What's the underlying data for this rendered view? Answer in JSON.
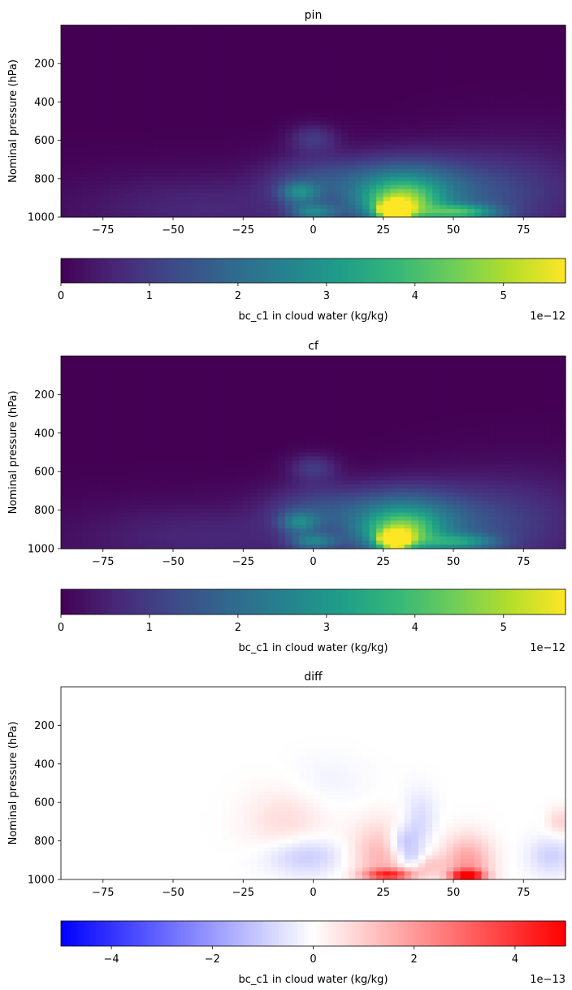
{
  "chart_data": [
    {
      "type": "heatmap",
      "title": "pin",
      "xlabel": "",
      "ylabel": "Nominal pressure (hPa)",
      "xlim": [
        -90,
        90
      ],
      "ylim": [
        1000,
        0
      ],
      "xticks": [
        -75,
        -50,
        -25,
        0,
        25,
        50,
        75
      ],
      "yticks": [
        200,
        400,
        600,
        800,
        1000
      ],
      "colormap": "viridis",
      "colorbar": {
        "label": "bc_c1 in cloud water (kg/kg)",
        "range": [
          0,
          5.7e-12
        ],
        "ticks": [
          0,
          1,
          2,
          3,
          4,
          5
        ],
        "multiplier": "1e−12"
      },
      "features": [
        {
          "lat": 29,
          "pressure": 965,
          "dlat": 3.5,
          "dp": 28,
          "value": 5.5e-12
        },
        {
          "lat": 31,
          "pressure": 940,
          "dlat": 9,
          "dp": 70,
          "value": 2.5e-12
        },
        {
          "lat": 30,
          "pressure": 860,
          "dlat": 14,
          "dp": 110,
          "value": 2.2e-12
        },
        {
          "lat": 53,
          "pressure": 975,
          "dlat": 9,
          "dp": 28,
          "value": 2.4e-12
        },
        {
          "lat": 50,
          "pressure": 900,
          "dlat": 22,
          "dp": 140,
          "value": 1.1e-12
        },
        {
          "lat": 0,
          "pressure": 975,
          "dlat": 6,
          "dp": 30,
          "value": 2e-12
        },
        {
          "lat": -5,
          "pressure": 875,
          "dlat": 5,
          "dp": 40,
          "value": 1.8e-12
        },
        {
          "lat": 0,
          "pressure": 800,
          "dlat": 12,
          "dp": 90,
          "value": 1e-12
        },
        {
          "lat": 0,
          "pressure": 590,
          "dlat": 6,
          "dp": 50,
          "value": 9e-13
        },
        {
          "lat": -40,
          "pressure": 930,
          "dlat": 30,
          "dp": 110,
          "value": 4.5e-13
        },
        {
          "lat": 75,
          "pressure": 800,
          "dlat": 25,
          "dp": 180,
          "value": 4.5e-13
        }
      ]
    },
    {
      "type": "heatmap",
      "title": "cf",
      "xlabel": "",
      "ylabel": "Nominal pressure (hPa)",
      "xlim": [
        -90,
        90
      ],
      "ylim": [
        1000,
        0
      ],
      "xticks": [
        -75,
        -50,
        -25,
        0,
        25,
        50,
        75
      ],
      "yticks": [
        200,
        400,
        600,
        800,
        1000
      ],
      "colormap": "viridis",
      "colorbar": {
        "label": "bc_c1 in cloud water (kg/kg)",
        "range": [
          0,
          5.7e-12
        ],
        "ticks": [
          0,
          1,
          2,
          3,
          4,
          5
        ],
        "multiplier": "1e−12"
      },
      "features": [
        {
          "lat": 29,
          "pressure": 955,
          "dlat": 3.5,
          "dp": 28,
          "value": 5.2e-12
        },
        {
          "lat": 31,
          "pressure": 930,
          "dlat": 9,
          "dp": 70,
          "value": 2.4e-12
        },
        {
          "lat": 30,
          "pressure": 850,
          "dlat": 14,
          "dp": 110,
          "value": 2.1e-12
        },
        {
          "lat": 53,
          "pressure": 965,
          "dlat": 9,
          "dp": 28,
          "value": 1.8e-12
        },
        {
          "lat": 50,
          "pressure": 890,
          "dlat": 22,
          "dp": 140,
          "value": 1e-12
        },
        {
          "lat": 0,
          "pressure": 965,
          "dlat": 6,
          "dp": 30,
          "value": 1.9e-12
        },
        {
          "lat": -5,
          "pressure": 865,
          "dlat": 5,
          "dp": 40,
          "value": 1.7e-12
        },
        {
          "lat": 0,
          "pressure": 790,
          "dlat": 12,
          "dp": 90,
          "value": 1e-12
        },
        {
          "lat": 0,
          "pressure": 580,
          "dlat": 6,
          "dp": 50,
          "value": 9e-13
        },
        {
          "lat": -40,
          "pressure": 920,
          "dlat": 30,
          "dp": 110,
          "value": 4.5e-13
        },
        {
          "lat": 75,
          "pressure": 790,
          "dlat": 25,
          "dp": 180,
          "value": 4.5e-13
        }
      ]
    },
    {
      "type": "heatmap",
      "title": "diff",
      "xlabel": "",
      "ylabel": "Nominal pressure (hPa)",
      "xlim": [
        -90,
        90
      ],
      "ylim": [
        1000,
        0
      ],
      "xticks": [
        -75,
        -50,
        -25,
        0,
        25,
        50,
        75
      ],
      "yticks": [
        200,
        400,
        600,
        800,
        1000
      ],
      "colormap": "bwr",
      "colorbar": {
        "label": "bc_c1 in cloud water (kg/kg)",
        "range": [
          -5e-13,
          5e-13
        ],
        "ticks": [
          -4,
          -2,
          0,
          2,
          4
        ],
        "multiplier": "1e−13"
      },
      "features": [
        {
          "lat": 55,
          "pressure": 980,
          "dlat": 4,
          "dp": 20,
          "value": 4.8e-13
        },
        {
          "lat": 55,
          "pressure": 920,
          "dlat": 6,
          "dp": 100,
          "value": 2e-13
        },
        {
          "lat": 27,
          "pressure": 975,
          "dlat": 6,
          "dp": 20,
          "value": 3.5e-13
        },
        {
          "lat": 25,
          "pressure": 880,
          "dlat": 8,
          "dp": 120,
          "value": 1.6e-13
        },
        {
          "lat": 40,
          "pressure": 920,
          "dlat": 4,
          "dp": 40,
          "value": 1.4e-13
        },
        {
          "lat": -10,
          "pressure": 700,
          "dlat": 10,
          "dp": 120,
          "value": 7e-14
        },
        {
          "lat": 32,
          "pressure": 810,
          "dlat": 4,
          "dp": 60,
          "value": -1.6e-13
        },
        {
          "lat": 36,
          "pressure": 900,
          "dlat": 4,
          "dp": 40,
          "value": -1.4e-13
        },
        {
          "lat": -3,
          "pressure": 880,
          "dlat": 10,
          "dp": 70,
          "value": -1.1e-13
        },
        {
          "lat": 38,
          "pressure": 700,
          "dlat": 4,
          "dp": 110,
          "value": -8e-14
        },
        {
          "lat": 5,
          "pressure": 500,
          "dlat": 10,
          "dp": 100,
          "value": -2.5e-14
        },
        {
          "lat": 85,
          "pressure": 880,
          "dlat": 6,
          "dp": 70,
          "value": -9e-14
        },
        {
          "lat": 88,
          "pressure": 700,
          "dlat": 3,
          "dp": 50,
          "value": 9e-14
        }
      ]
    }
  ]
}
